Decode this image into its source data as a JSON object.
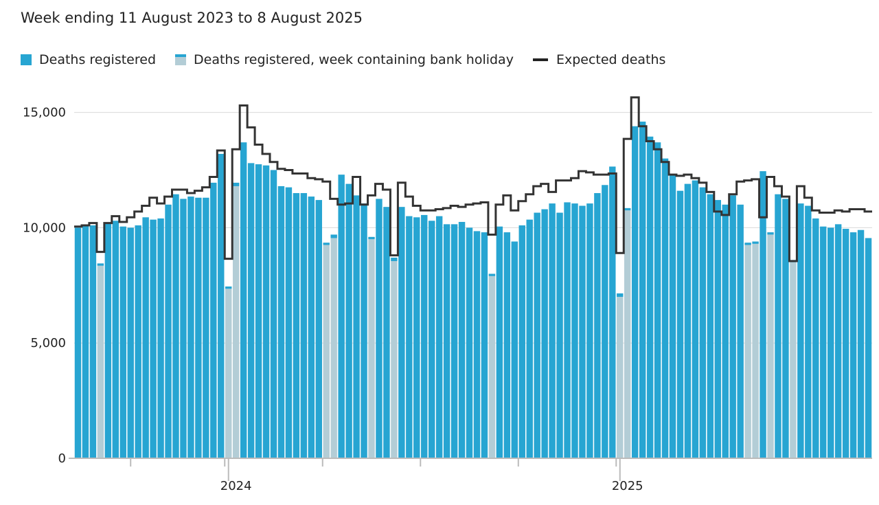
{
  "header": {
    "subtitle": "Week ending 11 August 2023 to 8 August 2025"
  },
  "legend": {
    "items": [
      {
        "label": "Deaths registered"
      },
      {
        "label": "Deaths registered, week containing bank holiday"
      },
      {
        "label": "Expected deaths"
      }
    ]
  },
  "colors": {
    "registered": "#27a5d2",
    "bank_holiday": "#b3cdd6",
    "expected": "#333333",
    "grid": "#d9d9d9",
    "axis": "#bbbbbb"
  },
  "chart_data": {
    "type": "bar",
    "subtitle": "Week ending 11 August 2023 to 8 August 2025",
    "series": [
      {
        "name": "Deaths registered"
      },
      {
        "name": "Deaths registered, week containing bank holiday"
      },
      {
        "name": "Expected deaths"
      }
    ],
    "ylim": [
      0,
      16000
    ],
    "yticks": [
      {
        "value": 0,
        "label": "0"
      },
      {
        "value": 5000,
        "label": "5,000"
      },
      {
        "value": 10000,
        "label": "10,000"
      },
      {
        "value": 15000,
        "label": "15,000"
      }
    ],
    "xtick_labels": [
      {
        "week": 21.5,
        "label": "2024"
      },
      {
        "week": 73.5,
        "label": "2025"
      }
    ],
    "xminor_ticks": [
      7.5,
      20,
      33,
      46,
      59,
      72
    ],
    "xmajor_ticks": [
      20.5,
      72.5
    ],
    "grid": true,
    "legend_position": "top-left",
    "registered": [
      10000,
      10080,
      10100,
      8450,
      10200,
      10300,
      10050,
      10000,
      10100,
      10450,
      10350,
      10400,
      11000,
      11450,
      11250,
      11350,
      11300,
      11300,
      11950,
      13200,
      7450,
      11950,
      13700,
      12800,
      12750,
      12700,
      12500,
      11800,
      11750,
      11500,
      11500,
      11350,
      11200,
      9350,
      9700,
      12300,
      11900,
      11400,
      11050,
      9600,
      11250,
      10900,
      8700,
      10900,
      10500,
      10450,
      10550,
      10300,
      10500,
      10150,
      10150,
      10250,
      10000,
      9850,
      9800,
      8000,
      10050,
      9800,
      9400,
      10100,
      10350,
      10650,
      10800,
      11050,
      10650,
      11100,
      11050,
      10950,
      11050,
      11500,
      11850,
      12650,
      7150,
      10850,
      14400,
      14600,
      13950,
      13700,
      13000,
      12300,
      11600,
      11900,
      12050,
      11750,
      11450,
      11200,
      11000,
      11400,
      11000,
      9350,
      9400,
      12450,
      9800,
      11450,
      11250,
      8600,
      11050,
      10950,
      10400,
      10050,
      10000,
      10150,
      9950,
      9800,
      9900,
      9550
    ],
    "bank_holiday": [
      false,
      false,
      false,
      true,
      false,
      false,
      false,
      false,
      false,
      false,
      false,
      false,
      false,
      false,
      false,
      false,
      false,
      false,
      false,
      false,
      true,
      true,
      false,
      false,
      false,
      false,
      false,
      false,
      false,
      false,
      false,
      false,
      false,
      true,
      true,
      false,
      false,
      false,
      false,
      true,
      false,
      false,
      true,
      false,
      false,
      false,
      false,
      false,
      false,
      false,
      false,
      false,
      false,
      false,
      false,
      true,
      false,
      false,
      false,
      false,
      false,
      false,
      false,
      false,
      false,
      false,
      false,
      false,
      false,
      false,
      false,
      false,
      true,
      true,
      false,
      false,
      false,
      false,
      false,
      false,
      false,
      false,
      false,
      false,
      false,
      false,
      false,
      false,
      false,
      true,
      true,
      false,
      true,
      false,
      false,
      true,
      false,
      false,
      false,
      false,
      false,
      false,
      false,
      false,
      false,
      false
    ],
    "bank_holiday_registered": [
      null,
      null,
      null,
      8350,
      null,
      null,
      null,
      null,
      null,
      null,
      null,
      null,
      null,
      null,
      null,
      null,
      null,
      null,
      null,
      null,
      7350,
      11800,
      null,
      null,
      null,
      null,
      null,
      null,
      null,
      null,
      null,
      null,
      null,
      9250,
      9550,
      null,
      null,
      null,
      null,
      9500,
      null,
      null,
      8550,
      null,
      null,
      null,
      null,
      null,
      null,
      null,
      null,
      null,
      null,
      null,
      null,
      7900,
      null,
      null,
      null,
      null,
      null,
      null,
      null,
      null,
      null,
      null,
      null,
      null,
      null,
      null,
      null,
      null,
      7000,
      10750,
      null,
      null,
      null,
      null,
      null,
      null,
      null,
      null,
      null,
      null,
      null,
      null,
      null,
      null,
      null,
      9250,
      9300,
      null,
      9700,
      null,
      null,
      8500,
      null,
      null,
      null,
      null,
      null,
      null,
      null,
      null,
      null,
      null
    ],
    "expected": [
      10050,
      10100,
      10200,
      8950,
      10200,
      10500,
      10250,
      10450,
      10700,
      10950,
      11300,
      11050,
      11350,
      11650,
      11650,
      11500,
      11600,
      11750,
      12200,
      13350,
      8650,
      13400,
      15300,
      14350,
      13600,
      13200,
      12850,
      12550,
      12500,
      12350,
      12350,
      12150,
      12100,
      12000,
      11250,
      11000,
      11050,
      12200,
      11000,
      11400,
      11900,
      11650,
      8800,
      11950,
      11350,
      10950,
      10750,
      10750,
      10800,
      10850,
      10950,
      10900,
      11000,
      11050,
      11100,
      9700,
      11000,
      11400,
      10750,
      11150,
      11450,
      11800,
      11900,
      11550,
      12050,
      12050,
      12150,
      12450,
      12400,
      12300,
      12300,
      12350,
      8900,
      13850,
      15650,
      14400,
      13750,
      13400,
      12850,
      12300,
      12250,
      12300,
      12150,
      11950,
      11550,
      10700,
      10550,
      11450,
      12000,
      12050,
      12100,
      10450,
      12200,
      11800,
      11350,
      8550,
      11800,
      11300,
      10750,
      10650,
      10650,
      10750,
      10700,
      10800,
      10800,
      10700
    ]
  }
}
